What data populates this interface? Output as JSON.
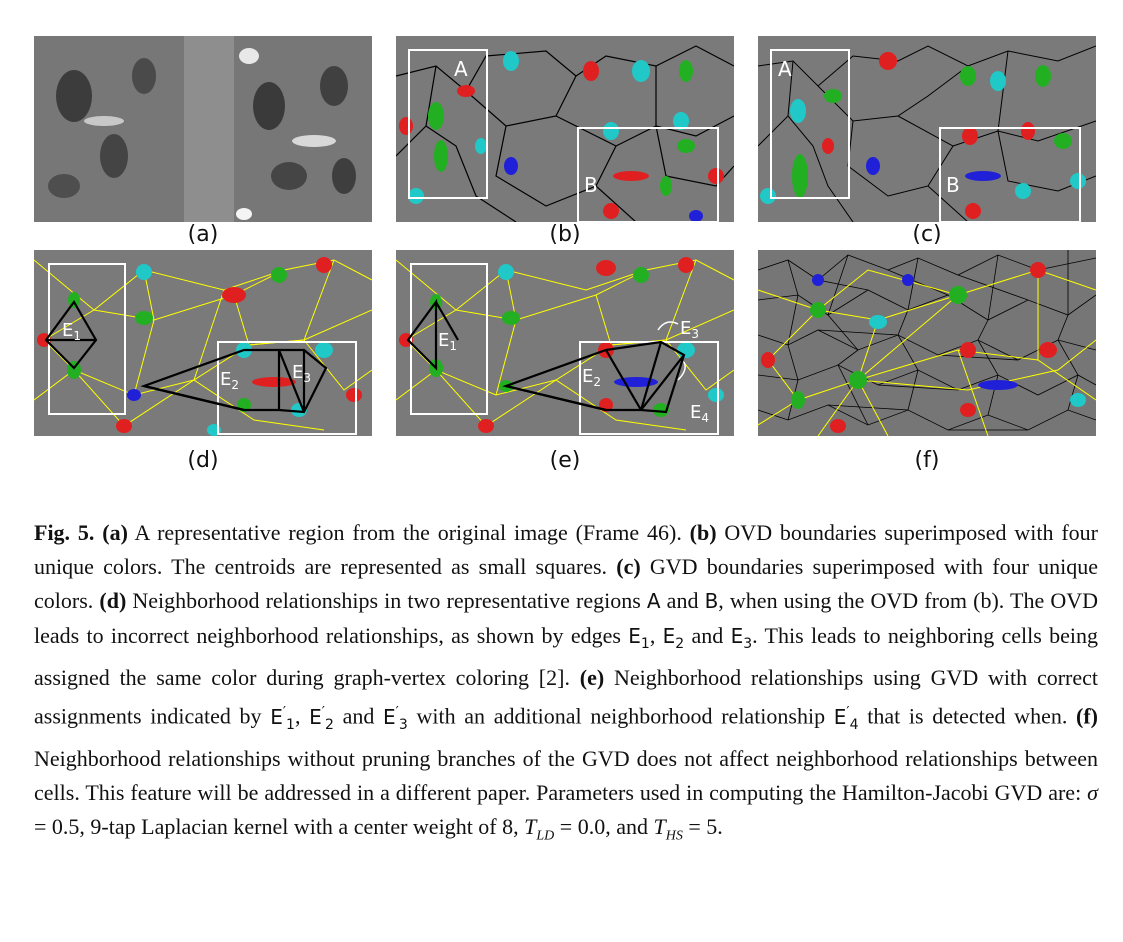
{
  "figure": {
    "panels": [
      {
        "id": "a",
        "label": "(a)",
        "overlay_labels": []
      },
      {
        "id": "b",
        "label": "(b)",
        "overlay_labels": [
          "A",
          "B"
        ]
      },
      {
        "id": "c",
        "label": "(c)",
        "overlay_labels": [
          "A",
          "B"
        ]
      },
      {
        "id": "d",
        "label": "(d)",
        "overlay_labels": [
          "E1",
          "E2",
          "E3"
        ]
      },
      {
        "id": "e",
        "label": "(e)",
        "overlay_labels": [
          "E1'",
          "E2'",
          "E3'",
          "E4'"
        ]
      },
      {
        "id": "f",
        "label": "(f)",
        "overlay_labels": []
      }
    ],
    "cell_colors": {
      "red": "#e02020",
      "green": "#22b022",
      "blue": "#2020d8",
      "cyan": "#20c8c8"
    },
    "edge_colors": {
      "delaunay": "#ffff00",
      "highlight": "#000000",
      "region_box": "#ffffff"
    }
  },
  "caption": {
    "fig_label": "Fig. 5.",
    "a_tag": "(a)",
    "a_text": " A representative region from the original image (Frame 46). ",
    "b_tag": "(b)",
    "b_text": " OVD boundaries superimposed with four unique colors. The centroids are represented as small squares. ",
    "c_tag": "(c)",
    "c_text": " GVD boundaries superimposed with four unique colors. ",
    "d_tag": "(d)",
    "d_text_1": " Neighborhood relationships in two representative regions ",
    "region_a": "A",
    "and_1": " and ",
    "region_b": "B",
    "d_text_2": ", when using the OVD from (b). The OVD leads to incorrect neighborhood relationships, as shown by edges ",
    "edge_letter": "E",
    "sub_1": "1",
    "sub_2": "2",
    "sub_3": "3",
    "sub_4": "4",
    "comma": ", ",
    "and_2": " and ",
    "d_text_3": ". This leads to neighboring cells being assigned the same color during graph-vertex coloring [2]. ",
    "e_tag": "(e)",
    "e_text_1": " Neighborhood relationships using GVD with correct assignments indicated by ",
    "prime": "′",
    "e_text_2": " with an additional neighborhood relationship ",
    "e_text_3": " that is detected when. ",
    "f_tag": "(f)",
    "f_text": " Neighborhood relationships without pruning branches of the GVD does not affect neighborhood relationships between cells. This feature will be addressed in a different paper. Parameters used in computing the Hamilton-Jacobi GVD are: ",
    "sigma": "σ",
    "eq": " = ",
    "sigma_val": "0.5",
    "p_text_1": ", 9-tap Laplacian kernel with a center weight of 8, ",
    "T": "T",
    "LD": "LD",
    "ld_val": "0.0",
    "p_text_2": ", and ",
    "HS": "HS",
    "hs_val": "5",
    "period": "."
  }
}
